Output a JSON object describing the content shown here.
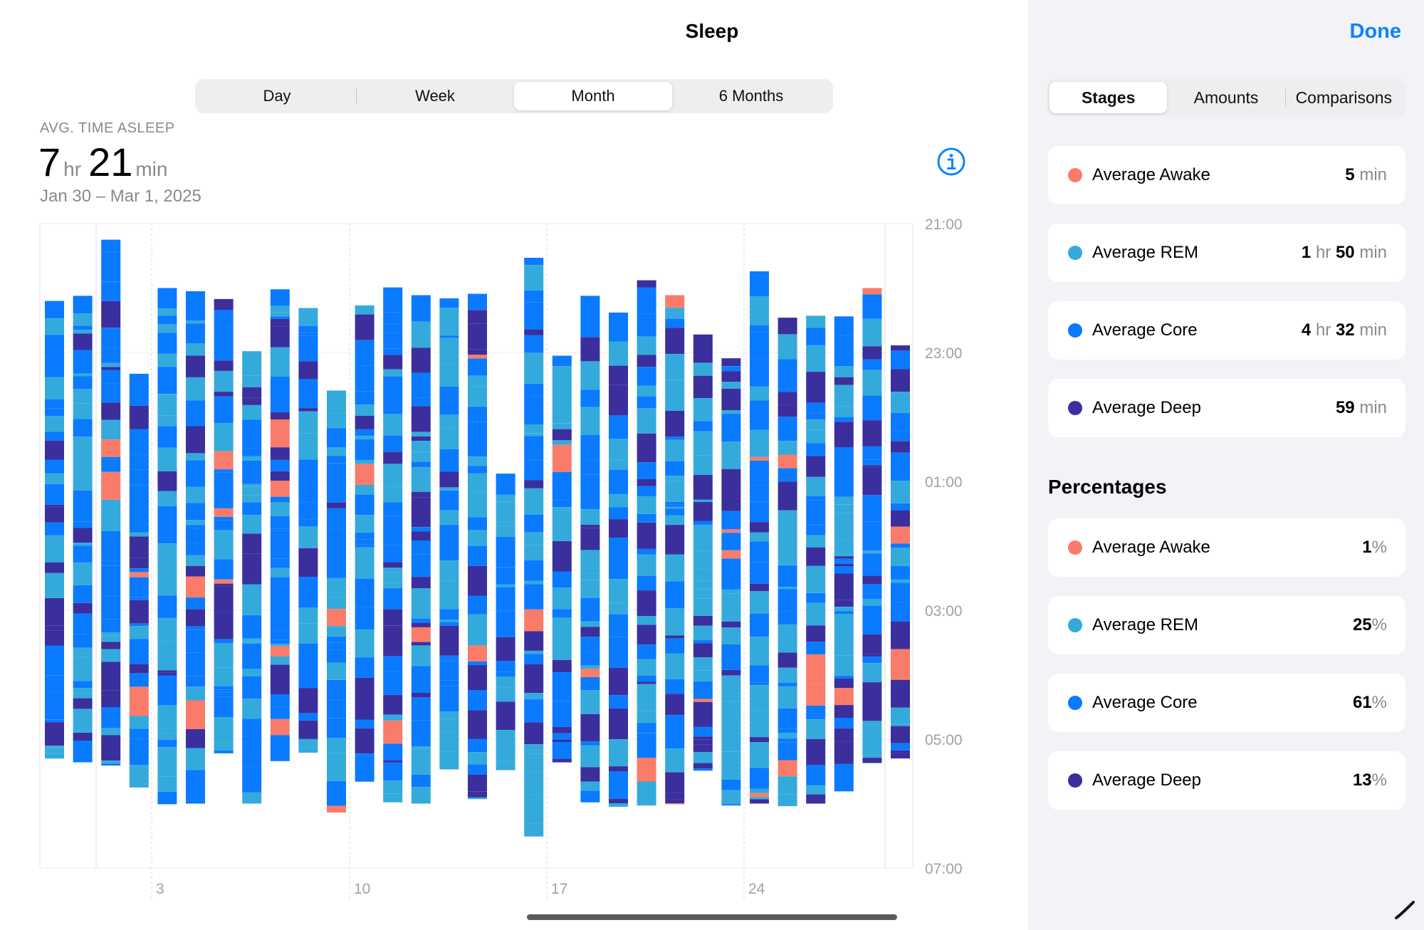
{
  "header": {
    "title": "Sleep",
    "done_label": "Done"
  },
  "range_tabs": [
    {
      "label": "Day",
      "selected": false
    },
    {
      "label": "Week",
      "selected": false
    },
    {
      "label": "Month",
      "selected": true
    },
    {
      "label": "6 Months",
      "selected": false
    }
  ],
  "summary": {
    "label": "AVG. TIME ASLEEP",
    "hours": "7",
    "hours_unit": "hr",
    "minutes": "21",
    "minutes_unit": "min",
    "range": "Jan 30 – Mar 1, 2025"
  },
  "view_tabs": [
    {
      "label": "Stages",
      "selected": true
    },
    {
      "label": "Amounts",
      "selected": false
    },
    {
      "label": "Comparisons",
      "selected": false
    }
  ],
  "stage_averages": [
    {
      "label": "Average Awake",
      "v1": "5",
      "u1": "min",
      "v2": "",
      "u2": "",
      "color": "#f97c6b"
    },
    {
      "label": "Average REM",
      "v1": "1",
      "u1": "hr",
      "v2": "50",
      "u2": "min",
      "color": "#34aadc"
    },
    {
      "label": "Average Core",
      "v1": "4",
      "u1": "hr",
      "v2": "32",
      "u2": "min",
      "color": "#0a7aff"
    },
    {
      "label": "Average Deep",
      "v1": "59",
      "u1": "min",
      "v2": "",
      "u2": "",
      "color": "#3b2f9e"
    }
  ],
  "percentages_title": "Percentages",
  "stage_percentages": [
    {
      "label": "Average Awake",
      "value": "1",
      "unit": "%",
      "color": "#f97c6b"
    },
    {
      "label": "Average REM",
      "value": "25",
      "unit": "%",
      "color": "#34aadc"
    },
    {
      "label": "Average Core",
      "value": "61",
      "unit": "%",
      "color": "#0a7aff"
    },
    {
      "label": "Average Deep",
      "value": "13",
      "unit": "%",
      "color": "#3b2f9e"
    }
  ],
  "chart_data": {
    "type": "bar",
    "subtype": "sleep-stage range bars (floating)",
    "x_ticks": [
      "3",
      "10",
      "17",
      "24"
    ],
    "y_ticks": [
      "21:00",
      "23:00",
      "01:00",
      "03:00",
      "05:00",
      "07:00"
    ],
    "y_range_hours": [
      21,
      31
    ],
    "grid": true,
    "colors": {
      "awake": "#f97c6b",
      "rem": "#34aadc",
      "core": "#0a7aff",
      "deep": "#3b2f9e"
    },
    "nights_start_end_hours": [
      [
        22.2,
        29.3
      ],
      [
        22.12,
        29.36
      ],
      [
        21.25,
        29.41
      ],
      [
        23.33,
        29.75
      ],
      [
        22.0,
        30.01
      ],
      [
        22.05,
        30.0
      ],
      [
        22.17,
        29.22
      ],
      [
        22.98,
        30.0
      ],
      [
        22.02,
        29.34
      ],
      [
        22.31,
        29.21
      ],
      [
        23.59,
        30.14
      ],
      [
        22.27,
        29.66
      ],
      [
        21.99,
        29.98
      ],
      [
        22.11,
        30.0
      ],
      [
        22.16,
        29.47
      ],
      [
        22.09,
        29.93
      ],
      [
        24.88,
        29.48
      ],
      [
        21.53,
        30.51
      ],
      [
        23.05,
        29.36
      ],
      [
        22.12,
        29.98
      ],
      [
        22.38,
        30.04
      ],
      [
        21.88,
        30.03
      ],
      [
        22.11,
        30.01
      ],
      [
        22.72,
        29.49
      ],
      [
        23.09,
        30.03
      ],
      [
        21.74,
        30.0
      ],
      [
        22.46,
        30.04
      ],
      [
        22.43,
        30.0
      ],
      [
        22.44,
        29.81
      ],
      [
        22.0,
        29.37
      ],
      [
        22.89,
        29.3
      ]
    ]
  }
}
